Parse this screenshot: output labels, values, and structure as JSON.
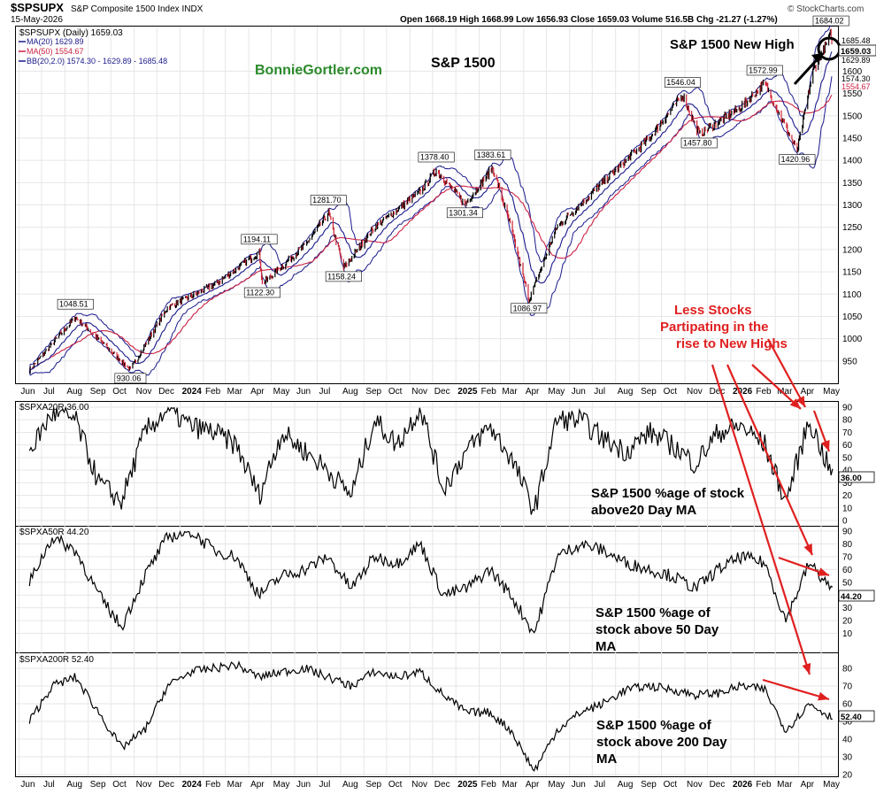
{
  "header": {
    "symbol": "$SPSUPX",
    "description": "S&P Composite 1500 Index  INDX",
    "date": "15-May-2026",
    "ohlc": "Open 1668.19  High 1668.99  Low 1656.93  Close 1659.03  Volume 516.5B  Chg -21.27 (-1.27%)",
    "brand": "© StockCharts.com"
  },
  "price_panel": {
    "legend_title": "$SPSUPX (Daily) 1659.03",
    "legend_ma20": "MA(20) 1629.89",
    "legend_ma50": "MA(50) 1554.67",
    "legend_bb": "BB(20,2.0) 1574.30 - 1629.89 - 1685.48",
    "site_label": "BonnieGortler.com",
    "chart_label": "S&P 1500",
    "new_high_label": "S&P 1500 New High",
    "annotation_lines": [
      "Less Stocks",
      "Partipating in the",
      "rise to New Highs"
    ],
    "price_tag": "1659.03",
    "extra_tags": [
      "1685.48",
      "1629.89",
      "1574.30",
      "1554.67"
    ],
    "colors": {
      "ma20": "#1a1a8c",
      "ma50": "#cc2244",
      "bb": "#1a1a8c",
      "up": "#000000",
      "down": "#cc2233",
      "annotation": "#e02020",
      "site": "#2a8a2a"
    }
  },
  "panel_20": {
    "title": "$SPXA20R 36.00",
    "tag": "36.00",
    "caption_lines": [
      "S&P 1500 %age of stock",
      "above20 Day MA"
    ]
  },
  "panel_50": {
    "title": "$SPXA50R 44.20",
    "tag": "44.20",
    "caption_lines": [
      "S&P 1500 %age of",
      "stock above 50 Day",
      "MA"
    ]
  },
  "panel_200": {
    "title": "$SPXA200R 52.40",
    "tag": "52.40",
    "caption_lines": [
      "S&P 1500 %age of",
      "stock above 200 Day",
      "MA"
    ]
  },
  "x_axis_labels": [
    "Jun",
    "Jul",
    "Aug",
    "Sep",
    "Oct",
    "Nov",
    "Dec",
    "2024",
    "Feb",
    "Mar",
    "Apr",
    "May",
    "Jun",
    "Jul",
    "Aug",
    "Sep",
    "Oct",
    "Nov",
    "Dec",
    "2025",
    "Feb",
    "Mar",
    "Apr",
    "May",
    "Jun",
    "Jul",
    "Aug",
    "Sep",
    "Oct",
    "Nov",
    "Dec",
    "2026",
    "Feb",
    "Mar",
    "Apr",
    "May"
  ],
  "chart_data": [
    {
      "type": "line",
      "title": "$SPSUPX (Daily) 1659.03",
      "ylim": [
        900,
        1700
      ],
      "yticks": [
        950,
        1000,
        1050,
        1100,
        1150,
        1200,
        1250,
        1300,
        1350,
        1400,
        1450,
        1500,
        1550,
        1600
      ],
      "x": [
        "2023-06",
        "2023-08",
        "2023-10-27",
        "2023-12",
        "2024-02",
        "2024-04",
        "2024-04-19",
        "2024-06",
        "2024-07-16",
        "2024-08-05",
        "2024-09",
        "2024-11",
        "2024-12-06",
        "2025-01-13",
        "2025-02-19",
        "2025-03",
        "2025-04-08",
        "2025-05",
        "2025-07",
        "2025-09",
        "2025-10-29",
        "2025-11-20",
        "2026-01",
        "2026-02",
        "2026-03-30",
        "2026-04-20",
        "2026-05-14",
        "2026-05-15"
      ],
      "series": [
        {
          "name": "$SPSUPX",
          "values": [
            930,
            1048.51,
            930.06,
            1070,
            1120,
            1194.11,
            1122.3,
            1210,
            1281.7,
            1158.24,
            1250,
            1330,
            1378.4,
            1301.34,
            1383.61,
            1250,
            1086.97,
            1250,
            1350,
            1450,
            1546.04,
            1457.8,
            1520,
            1572.99,
            1420.96,
            1600,
            1684.02,
            1659.03
          ]
        }
      ],
      "annotations": [
        "1048.51",
        "930.06",
        "1194.11",
        "1122.30",
        "1281.70",
        "1158.24",
        "1378.40",
        "1301.34",
        "1383.61",
        "1086.97",
        "1546.04",
        "1457.80",
        "1572.99",
        "1420.96",
        "1684.02"
      ]
    },
    {
      "type": "line",
      "title": "$SPXA20R 36.00",
      "ylim": [
        0,
        90
      ],
      "yticks": [
        0,
        10,
        20,
        30,
        40,
        50,
        60,
        70,
        80,
        90
      ],
      "x": [
        "2023-06",
        "2023-07",
        "2023-08",
        "2023-09",
        "2023-10",
        "2023-11",
        "2023-12",
        "2024-01",
        "2024-02",
        "2024-03",
        "2024-04",
        "2024-05",
        "2024-06",
        "2024-07",
        "2024-08",
        "2024-09",
        "2024-10",
        "2024-11",
        "2024-12",
        "2025-01",
        "2025-02",
        "2025-03",
        "2025-04",
        "2025-05",
        "2025-06",
        "2025-07",
        "2025-08",
        "2025-09",
        "2025-10",
        "2025-11",
        "2025-12",
        "2026-01",
        "2026-02",
        "2026-03",
        "2026-04",
        "2026-05"
      ],
      "series": [
        {
          "name": "$SPXA20R",
          "values": [
            55,
            85,
            80,
            30,
            15,
            70,
            88,
            75,
            70,
            60,
            20,
            70,
            55,
            40,
            20,
            80,
            60,
            90,
            25,
            55,
            75,
            50,
            8,
            80,
            80,
            65,
            55,
            70,
            60,
            45,
            70,
            75,
            60,
            15,
            80,
            36
          ]
        }
      ]
    },
    {
      "type": "line",
      "title": "$SPXA50R 44.20",
      "ylim": [
        0,
        90
      ],
      "yticks": [
        10,
        20,
        30,
        40,
        50,
        60,
        70,
        80,
        90
      ],
      "x": [
        "2023-06",
        "2023-07",
        "2023-08",
        "2023-09",
        "2023-10",
        "2023-11",
        "2023-12",
        "2024-01",
        "2024-02",
        "2024-03",
        "2024-04",
        "2024-05",
        "2024-06",
        "2024-07",
        "2024-08",
        "2024-09",
        "2024-10",
        "2024-11",
        "2024-12",
        "2025-01",
        "2025-02",
        "2025-03",
        "2025-04",
        "2025-05",
        "2025-06",
        "2025-07",
        "2025-08",
        "2025-09",
        "2025-10",
        "2025-11",
        "2025-12",
        "2026-01",
        "2026-02",
        "2026-03",
        "2026-04",
        "2026-05"
      ],
      "series": [
        {
          "name": "$SPXA50R",
          "values": [
            50,
            85,
            75,
            40,
            15,
            55,
            85,
            90,
            75,
            70,
            40,
            55,
            60,
            70,
            45,
            70,
            65,
            80,
            40,
            45,
            60,
            40,
            10,
            70,
            80,
            75,
            65,
            60,
            55,
            45,
            60,
            70,
            65,
            20,
            65,
            44.2
          ]
        }
      ]
    },
    {
      "type": "line",
      "title": "$SPXA200R 52.40",
      "ylim": [
        20,
        85
      ],
      "yticks": [
        20,
        30,
        40,
        50,
        60,
        70,
        80
      ],
      "x": [
        "2023-06",
        "2023-07",
        "2023-08",
        "2023-09",
        "2023-10",
        "2023-11",
        "2023-12",
        "2024-01",
        "2024-02",
        "2024-03",
        "2024-04",
        "2024-05",
        "2024-06",
        "2024-07",
        "2024-08",
        "2024-09",
        "2024-10",
        "2024-11",
        "2024-12",
        "2025-01",
        "2025-02",
        "2025-03",
        "2025-04",
        "2025-05",
        "2025-06",
        "2025-07",
        "2025-08",
        "2025-09",
        "2025-10",
        "2025-11",
        "2025-12",
        "2026-01",
        "2026-02",
        "2026-03",
        "2026-04",
        "2026-05"
      ],
      "series": [
        {
          "name": "$SPXA200R",
          "values": [
            50,
            70,
            75,
            55,
            35,
            45,
            70,
            78,
            80,
            82,
            75,
            78,
            80,
            75,
            70,
            78,
            75,
            78,
            65,
            55,
            55,
            45,
            22,
            45,
            55,
            60,
            68,
            70,
            68,
            65,
            66,
            70,
            68,
            45,
            60,
            52.4
          ]
        }
      ]
    }
  ]
}
